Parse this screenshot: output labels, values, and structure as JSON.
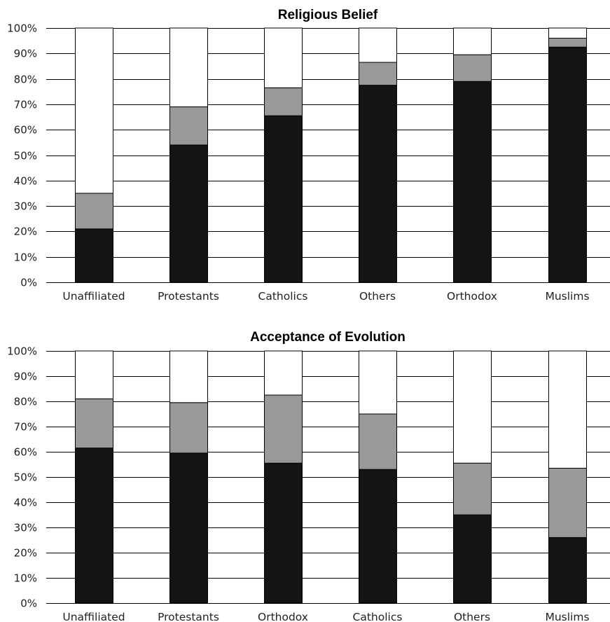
{
  "colors": {
    "bottom": "#141414",
    "middle": "#999999",
    "top": "#ffffff",
    "grid": "#000000"
  },
  "chart_data": [
    {
      "type": "bar",
      "stacked": true,
      "title": "Religious Belief",
      "xlabel": "",
      "ylabel": "",
      "ylim": [
        0,
        100
      ],
      "ytick_labels": [
        "0%",
        "10%",
        "20%",
        "30%",
        "40%",
        "50%",
        "60%",
        "70%",
        "80%",
        "90%",
        "100%"
      ],
      "grid": true,
      "categories": [
        "Unaffiliated",
        "Protestants",
        "Catholics",
        "Others",
        "Orthodox",
        "Muslims"
      ],
      "series": [
        {
          "color_key": "bottom",
          "values": [
            21,
            54,
            65.5,
            77.5,
            79,
            92.5
          ]
        },
        {
          "color_key": "middle",
          "values": [
            14,
            15,
            11,
            9,
            10.5,
            3.5
          ]
        },
        {
          "color_key": "top",
          "values": [
            65,
            31,
            23.5,
            13.5,
            10.5,
            4
          ]
        }
      ]
    },
    {
      "type": "bar",
      "stacked": true,
      "title": "Acceptance of Evolution",
      "xlabel": "",
      "ylabel": "",
      "ylim": [
        0,
        100
      ],
      "ytick_labels": [
        "0%",
        "10%",
        "20%",
        "30%",
        "40%",
        "50%",
        "60%",
        "70%",
        "80%",
        "90%",
        "100%"
      ],
      "grid": true,
      "categories": [
        "Unaffiliated",
        "Protestants",
        "Orthodox",
        "Catholics",
        "Others",
        "Muslims"
      ],
      "series": [
        {
          "color_key": "bottom",
          "values": [
            61.5,
            59.5,
            55.5,
            53,
            35,
            26
          ]
        },
        {
          "color_key": "middle",
          "values": [
            19.5,
            20,
            27,
            22,
            20.5,
            27.5
          ]
        },
        {
          "color_key": "top",
          "values": [
            19,
            20.5,
            17.5,
            25,
            44.5,
            46.5
          ]
        }
      ]
    }
  ]
}
